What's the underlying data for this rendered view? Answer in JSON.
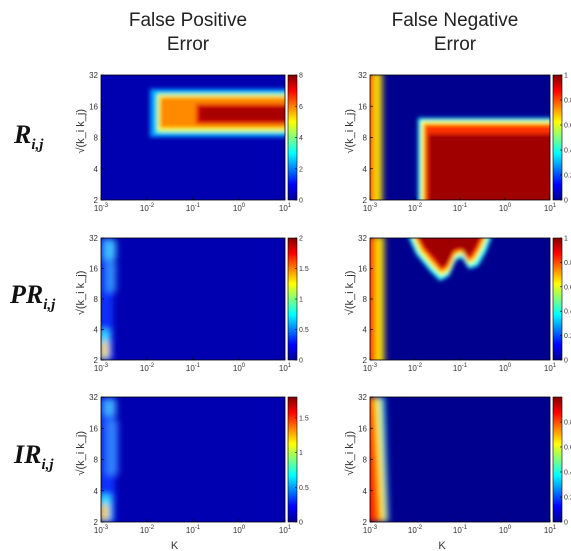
{
  "chart_data": {
    "type": "heatmap",
    "column_titles": [
      [
        "False Positive",
        "Error"
      ],
      [
        "False Negative",
        "Error"
      ]
    ],
    "row_labels": [
      {
        "main": "R",
        "sub": "i,j"
      },
      {
        "main": "PR",
        "sub": "i,j"
      },
      {
        "main": "IR",
        "sub": "i,j"
      }
    ],
    "xlabel": "K",
    "ylabel": "√(k_i k_j)",
    "x_scale": "log10",
    "y_scale": "log2",
    "xlim": [
      0.001,
      10
    ],
    "ylim": [
      2,
      32
    ],
    "x_ticks": [
      {
        "base": "10",
        "exp": "-3"
      },
      {
        "base": "10",
        "exp": "-2"
      },
      {
        "base": "10",
        "exp": "-1"
      },
      {
        "base": "10",
        "exp": "0"
      },
      {
        "base": "10",
        "exp": "1"
      }
    ],
    "y_ticks": [
      "2",
      "4",
      "8",
      "16",
      "32"
    ],
    "colormap": "jet",
    "panels": [
      {
        "row": 0,
        "col": 0,
        "colorbar_max": 8,
        "colorbar_ticks": [
          "0",
          "2",
          "4",
          "6",
          "8"
        ],
        "description": "High false-positive error (about 6-8) in band sqrt(k_i k_j) ~ 9-19 for K >= 0.02; low elsewhere",
        "regions": [
          {
            "x0": 0.02,
            "x1": 10,
            "y0": 9,
            "y1": 19,
            "value": 6.8
          },
          {
            "x0": 0.2,
            "x1": 10,
            "y0": 9.5,
            "y1": 15,
            "value": 7.8
          }
        ]
      },
      {
        "row": 0,
        "col": 1,
        "colorbar_max": 1,
        "colorbar_ticks": [
          "0",
          "0.2",
          "0.4",
          "0.6",
          "0.8",
          "1"
        ],
        "description": "False-negative error near 1 for sqrt(k_i k_j) below ~10 when K >= 0.02, and for K < 0.0015; near 0 elsewhere",
        "regions": [
          {
            "x0": 0.018,
            "x1": 10,
            "y0": 2,
            "y1": 10.5,
            "value": 1.0
          },
          {
            "x0": 0.001,
            "x1": 0.0015,
            "y0": 2,
            "y1": 32,
            "value": 0.8
          }
        ]
      },
      {
        "row": 1,
        "col": 0,
        "colorbar_max": 2,
        "colorbar_ticks": [
          "0",
          "0.5",
          "1",
          "1.5",
          "2"
        ],
        "description": "Low false-positive error overall with faint elevated values near K = 0.001",
        "regions": [
          {
            "x0": 0.001,
            "x1": 0.002,
            "y0": 2,
            "y1": 3,
            "value": 1.0
          },
          {
            "x0": 0.001,
            "x1": 0.0025,
            "y0": 12,
            "y1": 30,
            "value": 0.4
          }
        ]
      },
      {
        "row": 1,
        "col": 1,
        "colorbar_max": 1,
        "colorbar_ticks": [
          "0",
          "0.2",
          "0.4",
          "0.6",
          "0.8",
          "1"
        ],
        "description": "False-negative error near 1 along the left edge (K ~ 0.001) and in a lobe-shaped region at high sqrt(k_i k_j) for K between ~0.01 and ~0.5",
        "regions": [
          {
            "x0": 0.001,
            "x1": 0.0015,
            "y0": 2,
            "y1": 32,
            "value": 0.9
          },
          {
            "x0": 0.012,
            "x1": 0.5,
            "y0": 14,
            "y1": 32,
            "value": 1.0
          }
        ]
      },
      {
        "row": 2,
        "col": 0,
        "colorbar_max": 1.8,
        "colorbar_ticks": [
          "0",
          "0.5",
          "1",
          "1.5"
        ],
        "description": "Low false-positive error overall with faint elevated values near K = 0.001",
        "regions": [
          {
            "x0": 0.001,
            "x1": 0.002,
            "y0": 2,
            "y1": 3,
            "value": 1.3
          },
          {
            "x0": 0.001,
            "x1": 0.0025,
            "y0": 10,
            "y1": 30,
            "value": 0.4
          }
        ]
      },
      {
        "row": 2,
        "col": 1,
        "colorbar_max": 1,
        "colorbar_ticks": [
          "0",
          "0.2",
          "0.4",
          "0.6",
          "0.8"
        ],
        "description": "False-negative error near 1 only along the left edge (K ~ 0.001); near 0 elsewhere",
        "regions": [
          {
            "x0": 0.001,
            "x1": 0.0015,
            "y0": 2,
            "y1": 32,
            "value": 0.9
          }
        ]
      }
    ]
  }
}
